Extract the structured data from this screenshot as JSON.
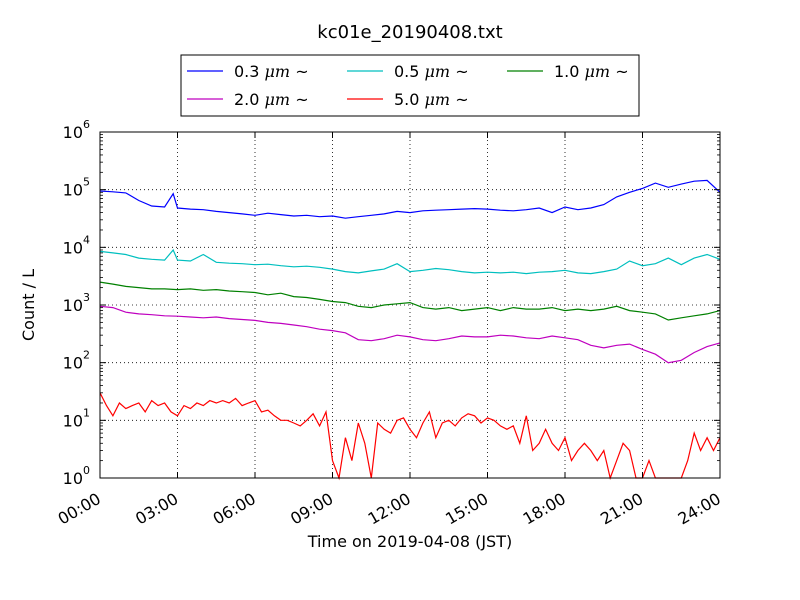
{
  "chart_data": {
    "type": "line",
    "title": "kc01e_20190408.txt",
    "xlabel": "Time on 2019-04-08 (JST)",
    "ylabel": "Count / L",
    "y_scale": "log",
    "ylim": [
      1,
      1000000
    ],
    "y_tick_labels": [
      "10",
      "10",
      "10",
      "10",
      "10",
      "10",
      "10"
    ],
    "y_tick_exponents": [
      "0",
      "1",
      "2",
      "3",
      "4",
      "5",
      "6"
    ],
    "xlim": [
      "00:00",
      "24:00"
    ],
    "x_tick_labels": [
      "00:00",
      "03:00",
      "06:00",
      "09:00",
      "12:00",
      "15:00",
      "18:00",
      "21:00",
      "24:00"
    ],
    "grid": true,
    "legend_position": "top-center",
    "series": [
      {
        "name": "0.3",
        "unit": "μm ~",
        "color": "#0000ff",
        "x": [
          "00:00",
          "00:30",
          "01:00",
          "01:30",
          "02:00",
          "02:30",
          "02:50",
          "03:00",
          "03:30",
          "04:00",
          "04:30",
          "05:00",
          "05:30",
          "06:00",
          "06:30",
          "07:00",
          "07:30",
          "08:00",
          "08:30",
          "09:00",
          "09:30",
          "10:00",
          "10:30",
          "11:00",
          "11:30",
          "12:00",
          "12:30",
          "13:00",
          "13:30",
          "14:00",
          "14:30",
          "15:00",
          "15:30",
          "16:00",
          "16:30",
          "17:00",
          "17:30",
          "18:00",
          "18:30",
          "19:00",
          "19:30",
          "20:00",
          "20:30",
          "21:00",
          "21:30",
          "22:00",
          "22:30",
          "23:00",
          "23:30",
          "24:00"
        ],
        "values": [
          95000,
          92000,
          88000,
          65000,
          52000,
          50000,
          85000,
          48000,
          46000,
          45000,
          42000,
          40000,
          38000,
          36000,
          39000,
          37000,
          35000,
          36000,
          34000,
          35000,
          32000,
          34000,
          36000,
          38000,
          42000,
          40000,
          43000,
          44000,
          45000,
          46000,
          47000,
          46000,
          44000,
          43000,
          45000,
          48000,
          40000,
          50000,
          45000,
          48000,
          55000,
          75000,
          90000,
          105000,
          130000,
          110000,
          125000,
          140000,
          145000,
          90000
        ]
      },
      {
        "name": "0.5",
        "unit": "μm ~",
        "color": "#00bfbf",
        "x": [
          "00:00",
          "00:30",
          "01:00",
          "01:30",
          "02:00",
          "02:30",
          "02:50",
          "03:00",
          "03:30",
          "04:00",
          "04:30",
          "05:00",
          "05:30",
          "06:00",
          "06:30",
          "07:00",
          "07:30",
          "08:00",
          "08:30",
          "09:00",
          "09:30",
          "10:00",
          "10:30",
          "11:00",
          "11:30",
          "12:00",
          "12:30",
          "13:00",
          "13:30",
          "14:00",
          "14:30",
          "15:00",
          "15:30",
          "16:00",
          "16:30",
          "17:00",
          "17:30",
          "18:00",
          "18:30",
          "19:00",
          "19:30",
          "20:00",
          "20:30",
          "21:00",
          "21:30",
          "22:00",
          "22:30",
          "23:00",
          "23:30",
          "24:00"
        ],
        "values": [
          8500,
          8000,
          7500,
          6500,
          6200,
          6000,
          9000,
          6000,
          5800,
          7500,
          5500,
          5300,
          5200,
          5000,
          5100,
          4800,
          4600,
          4700,
          4500,
          4200,
          3800,
          3600,
          3900,
          4200,
          5200,
          3800,
          4000,
          4300,
          4100,
          3800,
          3600,
          3700,
          3600,
          3700,
          3500,
          3700,
          3800,
          4000,
          3600,
          3500,
          3800,
          4200,
          5800,
          4800,
          5200,
          6500,
          5000,
          6500,
          7500,
          6200
        ]
      },
      {
        "name": "1.0",
        "unit": "μm ~",
        "color": "#008000",
        "x": [
          "00:00",
          "00:30",
          "01:00",
          "01:30",
          "02:00",
          "02:30",
          "03:00",
          "03:30",
          "04:00",
          "04:30",
          "05:00",
          "05:30",
          "06:00",
          "06:30",
          "07:00",
          "07:30",
          "08:00",
          "08:30",
          "09:00",
          "09:30",
          "10:00",
          "10:30",
          "11:00",
          "11:30",
          "12:00",
          "12:30",
          "13:00",
          "13:30",
          "14:00",
          "14:30",
          "15:00",
          "15:30",
          "16:00",
          "16:30",
          "17:00",
          "17:30",
          "18:00",
          "18:30",
          "19:00",
          "19:30",
          "20:00",
          "20:30",
          "21:00",
          "21:30",
          "22:00",
          "22:30",
          "23:00",
          "23:30",
          "24:00"
        ],
        "values": [
          2500,
          2300,
          2100,
          2000,
          1900,
          1900,
          1850,
          1900,
          1800,
          1850,
          1750,
          1700,
          1650,
          1500,
          1600,
          1400,
          1350,
          1250,
          1150,
          1100,
          950,
          900,
          1000,
          1050,
          1100,
          900,
          850,
          900,
          800,
          850,
          900,
          800,
          900,
          850,
          850,
          900,
          800,
          850,
          800,
          850,
          950,
          800,
          750,
          700,
          550,
          600,
          650,
          700,
          800
        ]
      },
      {
        "name": "2.0",
        "unit": "μm ~",
        "color": "#bf00bf",
        "x": [
          "00:00",
          "00:30",
          "01:00",
          "01:30",
          "02:00",
          "02:30",
          "03:00",
          "03:30",
          "04:00",
          "04:30",
          "05:00",
          "05:30",
          "06:00",
          "06:30",
          "07:00",
          "07:30",
          "08:00",
          "08:30",
          "09:00",
          "09:30",
          "10:00",
          "10:30",
          "11:00",
          "11:30",
          "12:00",
          "12:30",
          "13:00",
          "13:30",
          "14:00",
          "14:30",
          "15:00",
          "15:30",
          "16:00",
          "16:30",
          "17:00",
          "17:30",
          "18:00",
          "18:30",
          "19:00",
          "19:30",
          "20:00",
          "20:30",
          "21:00",
          "21:30",
          "22:00",
          "22:30",
          "23:00",
          "23:30",
          "24:00"
        ],
        "values": [
          950,
          900,
          750,
          700,
          680,
          650,
          640,
          620,
          600,
          620,
          580,
          560,
          540,
          500,
          480,
          450,
          420,
          380,
          360,
          330,
          250,
          240,
          260,
          300,
          280,
          250,
          240,
          260,
          290,
          280,
          280,
          300,
          290,
          270,
          260,
          290,
          270,
          250,
          200,
          180,
          200,
          210,
          170,
          140,
          100,
          110,
          150,
          190,
          220
        ]
      },
      {
        "name": "5.0",
        "unit": "μm ~",
        "color": "#ff0000",
        "x": [
          "00:00",
          "00:15",
          "00:30",
          "00:45",
          "01:00",
          "01:15",
          "01:30",
          "01:45",
          "02:00",
          "02:15",
          "02:30",
          "02:45",
          "03:00",
          "03:15",
          "03:30",
          "03:45",
          "04:00",
          "04:15",
          "04:30",
          "04:45",
          "05:00",
          "05:15",
          "05:30",
          "05:45",
          "06:00",
          "06:15",
          "06:30",
          "06:45",
          "07:00",
          "07:15",
          "07:30",
          "07:45",
          "08:00",
          "08:15",
          "08:30",
          "08:45",
          "09:00",
          "09:15",
          "09:30",
          "09:45",
          "10:00",
          "10:15",
          "10:30",
          "10:45",
          "11:00",
          "11:15",
          "11:30",
          "11:45",
          "12:00",
          "12:15",
          "12:30",
          "12:45",
          "13:00",
          "13:15",
          "13:30",
          "13:45",
          "14:00",
          "14:15",
          "14:30",
          "14:45",
          "15:00",
          "15:15",
          "15:30",
          "15:45",
          "16:00",
          "16:15",
          "16:30",
          "16:45",
          "17:00",
          "17:15",
          "17:30",
          "17:45",
          "18:00",
          "18:15",
          "18:30",
          "18:45",
          "19:00",
          "19:15",
          "19:30",
          "19:45",
          "20:00",
          "20:15",
          "20:30",
          "20:45",
          "21:00",
          "21:15",
          "21:30",
          "21:45",
          "22:00",
          "22:15",
          "22:30",
          "22:45",
          "23:00",
          "23:15",
          "23:30",
          "23:45",
          "24:00"
        ],
        "values": [
          30,
          18,
          12,
          20,
          16,
          18,
          20,
          14,
          22,
          18,
          20,
          14,
          12,
          18,
          16,
          20,
          18,
          22,
          20,
          22,
          20,
          24,
          18,
          20,
          22,
          14,
          15,
          12,
          10,
          10,
          9,
          8,
          10,
          13,
          8,
          14,
          2,
          1,
          5,
          2,
          9,
          4,
          1,
          9,
          7,
          6,
          10,
          11,
          7,
          5,
          9,
          14,
          5,
          9,
          10,
          8,
          11,
          13,
          12,
          9,
          11,
          10,
          8,
          7,
          8,
          4,
          12,
          3,
          4,
          7,
          4,
          3,
          5,
          2,
          3,
          4,
          3,
          2,
          3,
          1,
          2,
          4,
          3,
          1,
          1,
          2,
          1,
          1,
          1,
          1,
          1,
          2,
          6,
          3,
          5,
          3,
          5
        ]
      }
    ]
  }
}
